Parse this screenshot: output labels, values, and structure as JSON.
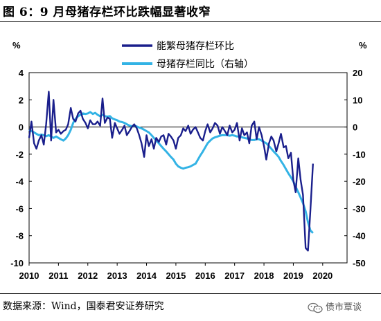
{
  "figure": {
    "title": "图 6：9 月母猪存栏环比跌幅显著收窄",
    "source": "数据来源：Wind，国泰君安证券研究",
    "watermark": "债市覃谈",
    "watermark_icon": "wechat-icon"
  },
  "chart_data": {
    "type": "line",
    "xlim": [
      2010,
      2020.83
    ],
    "x_ticks": [
      "2010",
      "2011",
      "2012",
      "2013",
      "2014",
      "2015",
      "2016",
      "2017",
      "2018",
      "2019",
      "2020"
    ],
    "left_axis": {
      "unit": "%",
      "ylim": [
        -10,
        4
      ],
      "ticks": [
        "4",
        "2",
        "0",
        "-2",
        "-4",
        "-6",
        "-8",
        "-10"
      ]
    },
    "right_axis": {
      "unit": "%",
      "ylim": [
        -50,
        20
      ],
      "ticks": [
        "20",
        "10",
        "0",
        "-10",
        "-20",
        "-30",
        "-40",
        "-50"
      ]
    },
    "legend": {
      "placement": "top-center"
    },
    "series": [
      {
        "name": "能繁母猪存栏环比",
        "axis": "left",
        "color": "#1a1f8c",
        "x": [
          2010.0,
          2010.08,
          2010.17,
          2010.25,
          2010.33,
          2010.42,
          2010.5,
          2010.58,
          2010.67,
          2010.75,
          2010.83,
          2010.92,
          2011.0,
          2011.08,
          2011.17,
          2011.25,
          2011.33,
          2011.42,
          2011.5,
          2011.58,
          2011.67,
          2011.75,
          2011.83,
          2011.92,
          2012.0,
          2012.08,
          2012.17,
          2012.25,
          2012.33,
          2012.42,
          2012.5,
          2012.58,
          2012.67,
          2012.75,
          2012.83,
          2012.92,
          2013.0,
          2013.08,
          2013.17,
          2013.25,
          2013.33,
          2013.42,
          2013.5,
          2013.58,
          2013.67,
          2013.75,
          2013.83,
          2013.92,
          2014.0,
          2014.08,
          2014.17,
          2014.25,
          2014.33,
          2014.42,
          2014.5,
          2014.58,
          2014.67,
          2014.75,
          2014.83,
          2014.92,
          2015.0,
          2015.08,
          2015.17,
          2015.25,
          2015.33,
          2015.42,
          2015.5,
          2015.58,
          2015.67,
          2015.75,
          2015.83,
          2015.92,
          2016.0,
          2016.08,
          2016.17,
          2016.25,
          2016.33,
          2016.42,
          2016.5,
          2016.58,
          2016.67,
          2016.75,
          2016.83,
          2016.92,
          2017.0,
          2017.08,
          2017.17,
          2017.25,
          2017.33,
          2017.42,
          2017.5,
          2017.58,
          2017.67,
          2017.75,
          2017.83,
          2017.92,
          2018.0,
          2018.08,
          2018.17,
          2018.25,
          2018.33,
          2018.42,
          2018.5,
          2018.58,
          2018.67,
          2018.75,
          2018.83,
          2018.92,
          2019.0,
          2019.08,
          2019.17,
          2019.25,
          2019.33,
          2019.42,
          2019.5,
          2019.58,
          2019.67
        ],
        "y": [
          -0.8,
          0.4,
          -1.2,
          -1.6,
          -1.0,
          -0.6,
          -1.3,
          0.2,
          2.6,
          -1.0,
          2.0,
          -0.4,
          -0.2,
          -0.5,
          -0.3,
          -0.2,
          0.2,
          1.4,
          0.6,
          0.4,
          1.0,
          1.2,
          0.6,
          0.3,
          -0.1,
          0.5,
          0.2,
          0.2,
          0.4,
          0.1,
          2.1,
          0.3,
          0.7,
          0.6,
          -0.8,
          0.3,
          -0.1,
          -0.5,
          -0.2,
          0.1,
          -0.6,
          -0.3,
          0.0,
          0.2,
          -0.1,
          -0.6,
          -1.2,
          -2.2,
          -0.6,
          -1.4,
          -0.9,
          -1.6,
          -0.8,
          -1.1,
          -0.7,
          -0.6,
          -1.3,
          -0.5,
          -0.7,
          -1.0,
          -1.6,
          -0.8,
          -0.6,
          -0.1,
          -0.3,
          0.1,
          -0.5,
          -0.2,
          0.0,
          -0.4,
          -0.8,
          -1.0,
          -0.3,
          0.2,
          -0.4,
          -0.1,
          0.3,
          0.1,
          -0.5,
          0.0,
          -0.3,
          -0.6,
          0.1,
          -0.4,
          -0.2,
          0.3,
          -1.0,
          -0.1,
          -0.6,
          -0.4,
          -1.2,
          0.1,
          0.4,
          -0.9,
          0.0,
          -0.6,
          -1.4,
          -2.4,
          -1.2,
          -0.7,
          -1.0,
          -1.8,
          -1.2,
          -0.5,
          -1.5,
          -1.4,
          -2.3,
          -1.9,
          -3.9,
          -4.8,
          -2.3,
          -3.9,
          -5.0,
          -8.9,
          -9.1,
          -6.2,
          -2.7
        ]
      },
      {
        "name": "母猪存栏同比（右轴）",
        "axis": "right",
        "color": "#33b3e5",
        "x": [
          2010.0,
          2010.08,
          2010.17,
          2010.25,
          2010.33,
          2010.42,
          2010.5,
          2010.58,
          2010.67,
          2010.75,
          2010.83,
          2010.92,
          2011.0,
          2011.08,
          2011.17,
          2011.25,
          2011.33,
          2011.42,
          2011.5,
          2011.58,
          2011.67,
          2011.75,
          2011.83,
          2011.92,
          2012.0,
          2012.08,
          2012.17,
          2012.25,
          2012.33,
          2012.42,
          2012.5,
          2012.58,
          2012.67,
          2012.75,
          2012.83,
          2012.92,
          2013.0,
          2013.08,
          2013.17,
          2013.25,
          2013.33,
          2013.42,
          2013.5,
          2013.58,
          2013.67,
          2013.75,
          2013.83,
          2013.92,
          2014.0,
          2014.08,
          2014.17,
          2014.25,
          2014.33,
          2014.42,
          2014.5,
          2014.58,
          2014.67,
          2014.75,
          2014.83,
          2014.92,
          2015.0,
          2015.08,
          2015.17,
          2015.25,
          2015.33,
          2015.42,
          2015.5,
          2015.58,
          2015.67,
          2015.75,
          2015.83,
          2015.92,
          2016.0,
          2016.08,
          2016.17,
          2016.25,
          2016.33,
          2016.42,
          2016.5,
          2016.58,
          2016.67,
          2016.75,
          2016.83,
          2016.92,
          2017.0,
          2017.08,
          2017.17,
          2017.25,
          2017.33,
          2017.42,
          2017.5,
          2017.58,
          2017.67,
          2017.75,
          2017.83,
          2017.92,
          2018.0,
          2018.08,
          2018.17,
          2018.25,
          2018.33,
          2018.42,
          2018.5,
          2018.58,
          2018.67,
          2018.75,
          2018.83,
          2018.92,
          2019.0,
          2019.08,
          2019.17,
          2019.25,
          2019.33,
          2019.42,
          2019.5,
          2019.58,
          2019.67
        ],
        "y": [
          -1.0,
          -1.5,
          -2.0,
          -2.5,
          -3.0,
          -2.8,
          -3.0,
          -3.4,
          -3.0,
          -3.5,
          -4.0,
          -3.5,
          -4.0,
          -4.5,
          -5.0,
          -4.2,
          -3.0,
          -1.0,
          1.5,
          3.0,
          4.0,
          4.5,
          5.0,
          4.8,
          5.0,
          5.5,
          4.8,
          5.2,
          4.5,
          4.0,
          4.5,
          4.0,
          3.8,
          4.0,
          3.2,
          2.8,
          2.5,
          2.0,
          1.8,
          1.5,
          1.0,
          0.5,
          0.3,
          0.5,
          0.2,
          -0.2,
          -0.5,
          -1.0,
          -1.5,
          -2.0,
          -3.0,
          -4.0,
          -5.0,
          -6.0,
          -7.0,
          -8.0,
          -9.0,
          -10.0,
          -11.0,
          -12.0,
          -13.5,
          -14.5,
          -15.0,
          -15.3,
          -15.0,
          -14.8,
          -14.5,
          -14.0,
          -13.5,
          -12.0,
          -10.5,
          -9.0,
          -7.5,
          -6.0,
          -5.0,
          -4.2,
          -3.8,
          -3.5,
          -3.2,
          -3.0,
          -3.0,
          -3.0,
          -3.2,
          -3.0,
          -3.2,
          -3.5,
          -3.5,
          -3.8,
          -4.0,
          -4.2,
          -4.5,
          -4.8,
          -4.8,
          -4.5,
          -4.5,
          -5.0,
          -5.5,
          -6.0,
          -7.0,
          -8.0,
          -9.0,
          -10.0,
          -11.0,
          -12.5,
          -14.0,
          -15.5,
          -17.0,
          -18.5,
          -20.0,
          -22.0,
          -24.0,
          -26.0,
          -28.0,
          -31.0,
          -35.0,
          -38.0,
          -39.0
        ]
      }
    ]
  }
}
